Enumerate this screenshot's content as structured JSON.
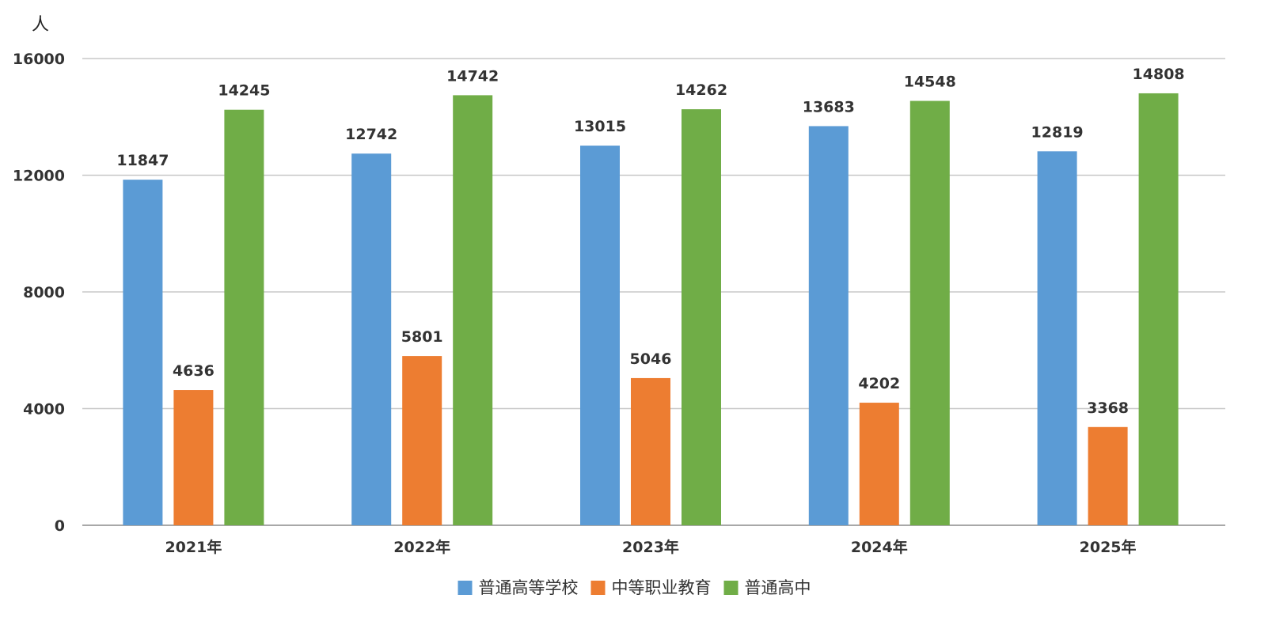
{
  "chart_data": {
    "type": "bar",
    "ylabel": "人",
    "ylim": [
      0,
      16000
    ],
    "yticks": [
      0,
      4000,
      8000,
      12000,
      16000
    ],
    "categories": [
      "2021年",
      "2022年",
      "2023年",
      "2024年",
      "2025年"
    ],
    "series": [
      {
        "name": "普通高等学校",
        "color": "#5b9bd5",
        "values": [
          11847,
          12742,
          13015,
          13683,
          12819
        ]
      },
      {
        "name": "中等职业教育",
        "color": "#ed7d31",
        "values": [
          4636,
          5801,
          5046,
          4202,
          3368
        ]
      },
      {
        "name": "普通高中",
        "color": "#70ad47",
        "values": [
          14245,
          14742,
          14262,
          14548,
          14808
        ]
      }
    ],
    "grid": true,
    "legend_position": "bottom-center",
    "data_labels": true
  }
}
